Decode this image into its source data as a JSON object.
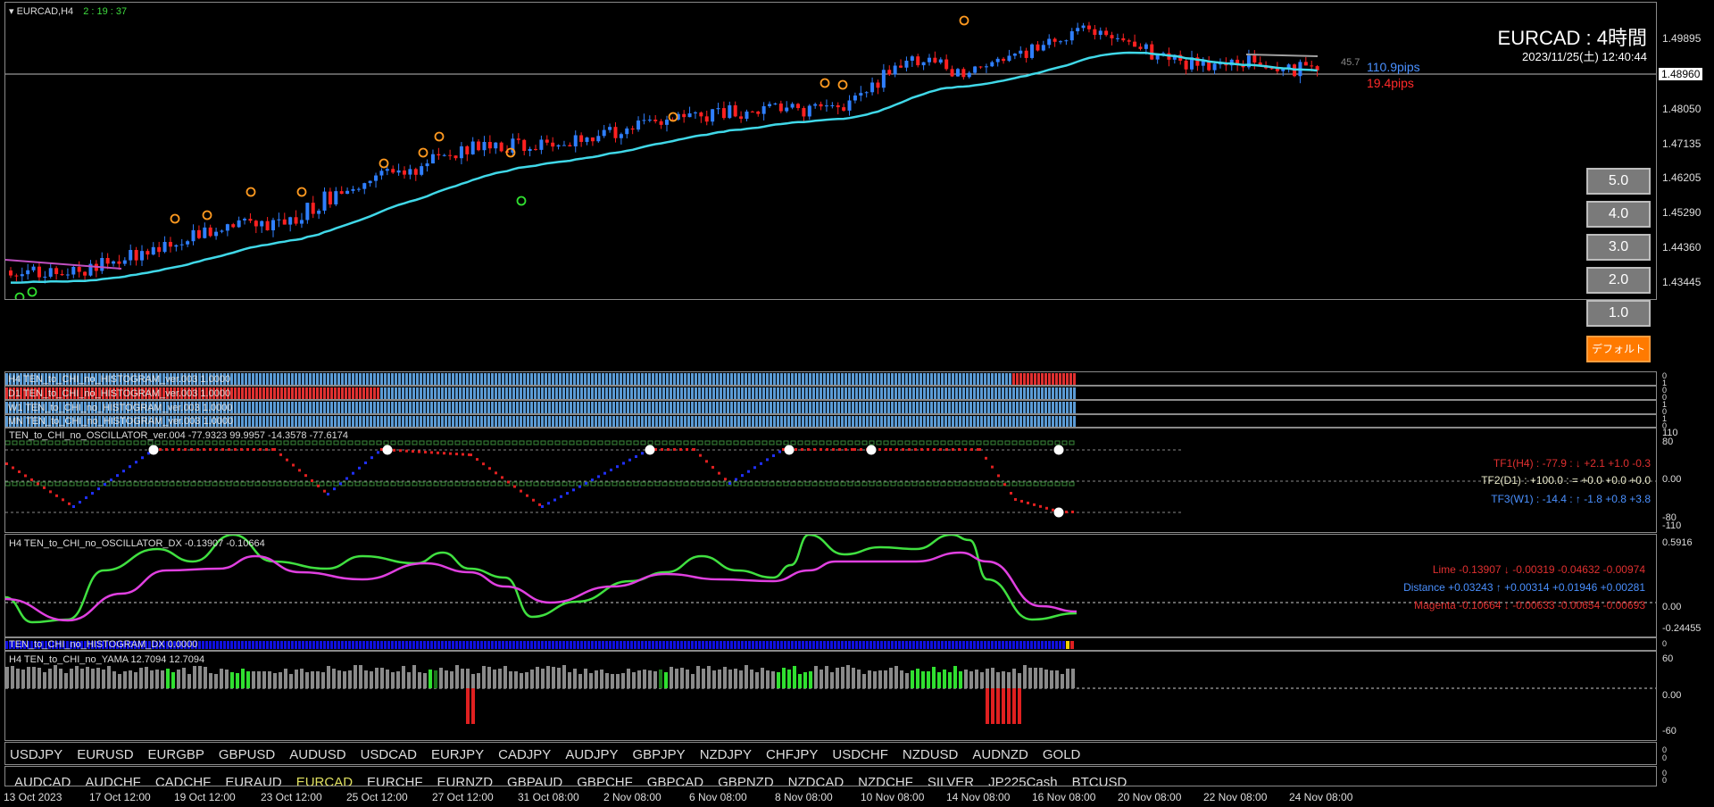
{
  "header": {
    "symbol": "EURCAD,H4",
    "countdown": "2 : 19 : 37",
    "title": "EURCAD : 4時間",
    "datetime": "2023/11/25(土) 12:40:44"
  },
  "price": {
    "current": "1.48960",
    "pips_small": "45.7",
    "pips_blue": "110.9pips",
    "pips_red": "19.4pips",
    "ticks": [
      "1.49895",
      "1.48050",
      "1.47135",
      "1.46205",
      "1.45290",
      "1.44360",
      "1.43445"
    ]
  },
  "buttons": [
    "5.0",
    "4.0",
    "3.0",
    "2.0",
    "1.0",
    "デフォルト"
  ],
  "histograms": [
    {
      "label": "H4 TEN_to_CHI_no_HISTOGRAM_ver.003 1.0000"
    },
    {
      "label": "D1 TEN_to_CHI_no_HISTOGRAM_ver.003 1.0000"
    },
    {
      "label": "W1 TEN_to_CHI_no_HISTOGRAM_ver.003 1.0000"
    },
    {
      "label": "MN TEN_to_CHI_no_HISTOGRAM_ver.003 1.0000"
    }
  ],
  "hist_axis": [
    "0",
    "1",
    "0",
    "0",
    "1",
    "0",
    "1",
    "0"
  ],
  "oscillator": {
    "label": "TEN_to_CHI_no_OSCILLATOR_ver.004 -77.9323 99.9957 -14.3578 -77.6174",
    "tf1": "TF1(H4) : -77.9 : ↓ +2.1 +1.0 -0.3",
    "tf2": "TF2(D1) : +100.0 : = +0.0 +0.0 +0.0",
    "tf3": "TF3(W1) : -14.4 : ↑ -1.8 +0.8 +3.8",
    "ticks": [
      "110",
      "80",
      "0.00",
      "-80",
      "-110"
    ]
  },
  "dx": {
    "label": "H4 TEN_to_CHI_no_OSCILLATOR_DX -0.13907 -0.10664",
    "lime": "Lime -0.13907 ↓ -0.00319 -0.04632 -0.00974",
    "distance": "Distance +0.03243 ↑ +0.00314 +0.01946 +0.00281",
    "magenta": "Magenta -0.10664 ↓ -0.00633 -0.00654 -0.00693",
    "ticks": [
      "0.5916",
      "0.00",
      "-0.24455"
    ]
  },
  "hist_dx": {
    "label": "TEN_to_CHI_no_HISTOGRAM_DX 0.0000",
    "axis": "0"
  },
  "yama": {
    "label": "H4 TEN_to_CHI_no_YAMA 12.7094 12.7094",
    "ticks": [
      "60",
      "0.00",
      "-60"
    ]
  },
  "symbols_row1": [
    "USDJPY",
    "EURUSD",
    "EURGBP",
    "GBPUSD",
    "AUDUSD",
    "USDCAD",
    "EURJPY",
    "CADJPY",
    "AUDJPY",
    "GBPJPY",
    "NZDJPY",
    "CHFJPY",
    "USDCHF",
    "NZDUSD",
    "AUDNZD",
    "GOLD"
  ],
  "symbols_row2": [
    "AUDCAD",
    "AUDCHF",
    "CADCHF",
    "EURAUD",
    "EURCAD",
    "EURCHF",
    "EURNZD",
    "GBPAUD",
    "GBPCHF",
    "GBPCAD",
    "GBPNZD",
    "NZDCAD",
    "NZDCHF",
    "SILVER",
    "JP225Cash",
    "BTCUSD"
  ],
  "symbols_active": "EURCAD",
  "sym_axis": [
    "0",
    "0",
    "0",
    "0"
  ],
  "xaxis": [
    "13 Oct 2023",
    "17 Oct 12:00",
    "19 Oct 12:00",
    "23 Oct 12:00",
    "25 Oct 12:00",
    "27 Oct 12:00",
    "31 Oct 08:00",
    "2 Nov 08:00",
    "6 Nov 08:00",
    "8 Nov 08:00",
    "10 Nov 08:00",
    "14 Nov 08:00",
    "16 Nov 08:00",
    "20 Nov 08:00",
    "22 Nov 08:00",
    "24 Nov 08:00"
  ]
}
